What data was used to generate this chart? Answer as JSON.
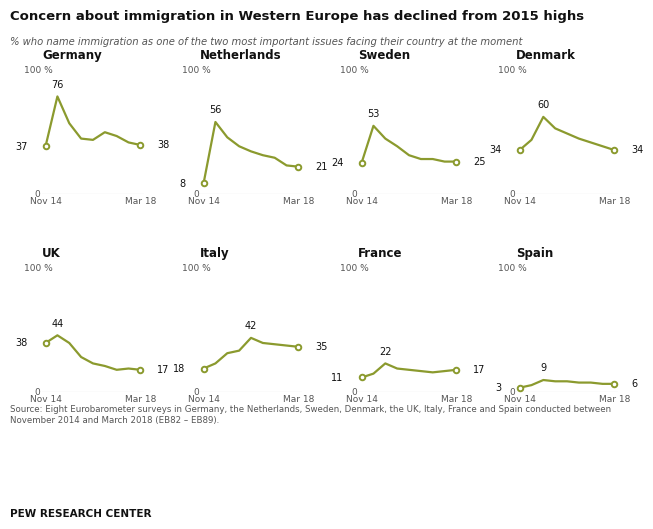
{
  "title": "Concern about immigration in Western Europe has declined from 2015 highs",
  "subtitle": "% who name immigration as one of the two most important issues facing their country at the moment",
  "source": "Source: Eight Eurobarometer surveys in Germany, the Netherlands, Sweden, Denmark, the UK, Italy, France and Spain conducted between\nNovember 2014 and March 2018 (EB82 – EB89).",
  "footer": "PEW RESEARCH CENTER",
  "line_color": "#8b9a2e",
  "bg_color": "#ffffff",
  "countries": [
    "Germany",
    "Netherlands",
    "Sweden",
    "Denmark",
    "UK",
    "Italy",
    "France",
    "Spain"
  ],
  "data": {
    "Germany": [
      37,
      76,
      55,
      43,
      42,
      48,
      45,
      40,
      38
    ],
    "Netherlands": [
      8,
      56,
      44,
      37,
      33,
      30,
      28,
      22,
      21
    ],
    "Sweden": [
      24,
      53,
      43,
      37,
      30,
      27,
      27,
      25,
      25
    ],
    "Denmark": [
      34,
      42,
      60,
      51,
      47,
      43,
      40,
      37,
      34
    ],
    "UK": [
      38,
      44,
      38,
      27,
      22,
      20,
      17,
      18,
      17
    ],
    "Italy": [
      18,
      22,
      30,
      32,
      42,
      38,
      37,
      36,
      35
    ],
    "France": [
      11,
      14,
      22,
      18,
      17,
      16,
      15,
      16,
      17
    ],
    "Spain": [
      3,
      5,
      9,
      8,
      8,
      7,
      7,
      6,
      6
    ]
  },
  "annotations": {
    "Germany": {
      "first": 37,
      "peak": 76,
      "last": 38,
      "peak_idx": 1
    },
    "Netherlands": {
      "first": 8,
      "peak": 56,
      "last": 21,
      "peak_idx": 1
    },
    "Sweden": {
      "first": 24,
      "peak": 53,
      "last": 25,
      "peak_idx": 1
    },
    "Denmark": {
      "first": 34,
      "peak": 60,
      "last": 34,
      "peak_idx": 2
    },
    "UK": {
      "first": 38,
      "peak": 44,
      "last": 17,
      "peak_idx": 1
    },
    "Italy": {
      "first": 18,
      "peak": 42,
      "last": 35,
      "peak_idx": 4
    },
    "France": {
      "first": 11,
      "peak": 22,
      "last": 17,
      "peak_idx": 2
    },
    "Spain": {
      "first": 3,
      "peak": 9,
      "last": 6,
      "peak_idx": 2
    }
  }
}
